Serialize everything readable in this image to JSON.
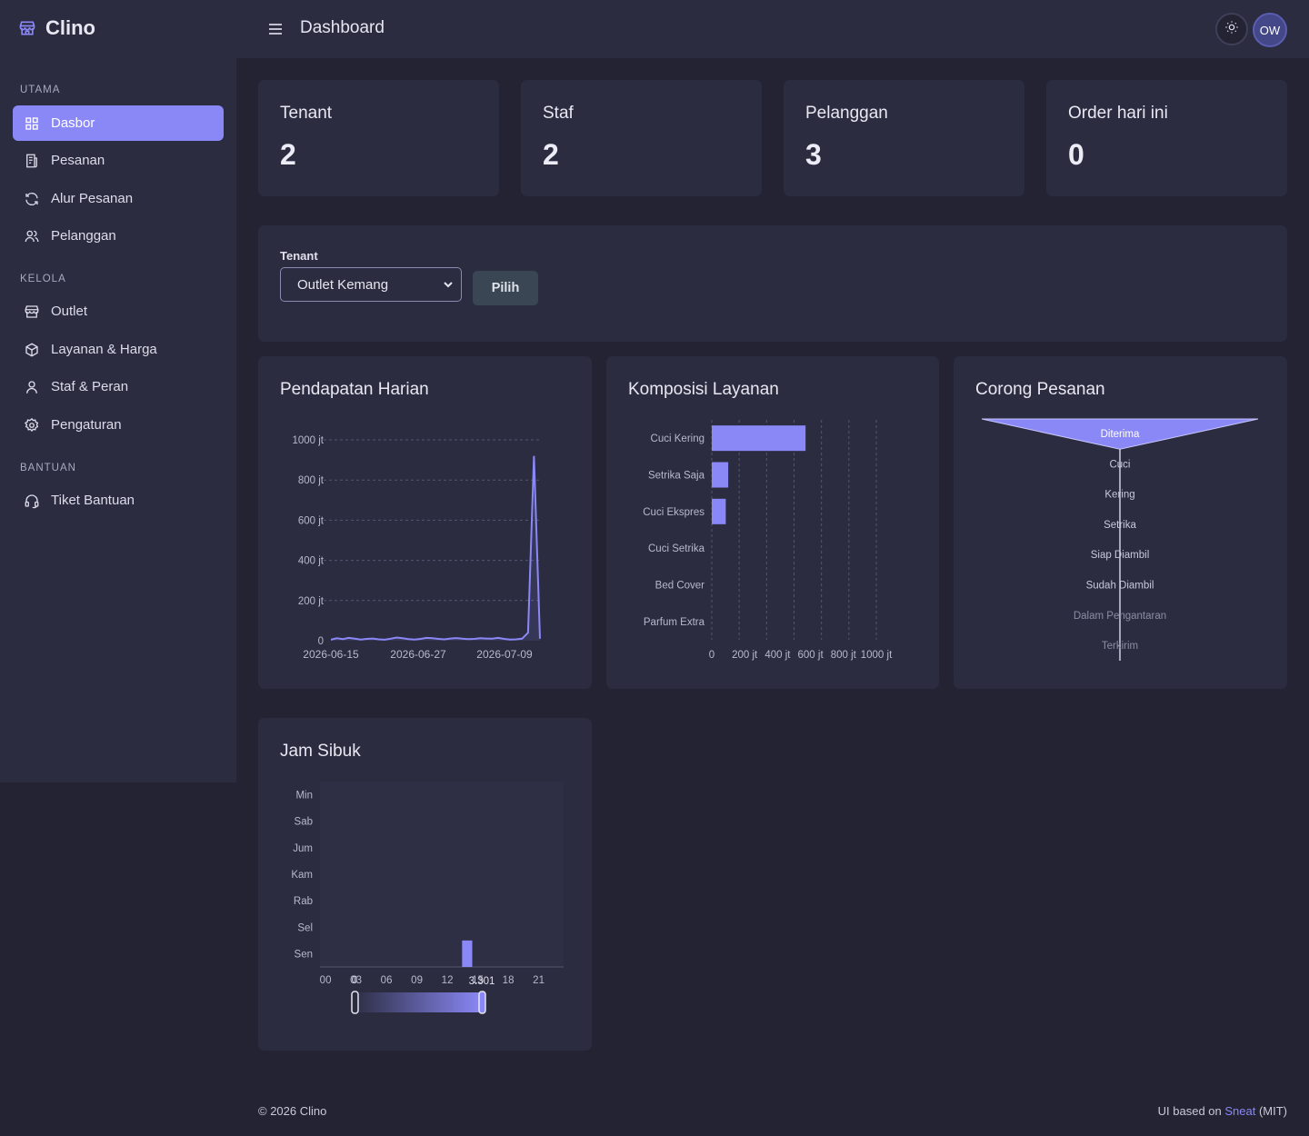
{
  "brand": {
    "name": "Clino"
  },
  "sidebar": {
    "sections": [
      {
        "label": "UTAMA",
        "items": [
          {
            "label": "Dasbor",
            "icon": "dashboard-icon",
            "active": true
          },
          {
            "label": "Pesanan",
            "icon": "receipt-icon"
          },
          {
            "label": "Alur Pesanan",
            "icon": "refresh-icon"
          },
          {
            "label": "Pelanggan",
            "icon": "users-icon"
          }
        ]
      },
      {
        "label": "KELOLA",
        "items": [
          {
            "label": "Outlet",
            "icon": "store-icon"
          },
          {
            "label": "Layanan & Harga",
            "icon": "package-icon"
          },
          {
            "label": "Staf & Peran",
            "icon": "user-icon"
          },
          {
            "label": "Pengaturan",
            "icon": "gear-icon"
          }
        ]
      },
      {
        "label": "BANTUAN",
        "items": [
          {
            "label": "Tiket Bantuan",
            "icon": "headset-icon"
          }
        ]
      }
    ]
  },
  "header": {
    "title": "Dashboard",
    "avatar_initials": "OW"
  },
  "stats": [
    {
      "label": "Tenant",
      "value": "2"
    },
    {
      "label": "Staf",
      "value": "2"
    },
    {
      "label": "Pelanggan",
      "value": "3"
    },
    {
      "label": "Order hari ini",
      "value": "0"
    }
  ],
  "filter": {
    "label": "Tenant",
    "selected": "Outlet Kemang",
    "button": "Pilih"
  },
  "chart_data": [
    {
      "type": "line",
      "title": "Pendapatan Harian",
      "y_ticks": [
        "0",
        "200 jt",
        "400 jt",
        "600 jt",
        "800 jt",
        "1000 jt"
      ],
      "x_ticks": [
        "2026-06-15",
        "2026-06-27",
        "2026-07-09"
      ],
      "ylim": [
        0,
        1000
      ],
      "series": [
        {
          "values": [
            5,
            12,
            8,
            14,
            10,
            6,
            9,
            11,
            7,
            5,
            10,
            16,
            12,
            8,
            6,
            9,
            14,
            12,
            9,
            7,
            11,
            13,
            10,
            8,
            9,
            12,
            11,
            10,
            14,
            9,
            6,
            7,
            10,
            40,
            920,
            10
          ]
        }
      ]
    },
    {
      "type": "bar",
      "orientation": "horizontal",
      "title": "Komposisi Layanan",
      "categories": [
        "Cuci Kering",
        "Setrika Saja",
        "Cuci Ekspres",
        "Cuci Setrika",
        "Bed Cover",
        "Parfum Extra"
      ],
      "values": [
        570,
        100,
        85,
        0,
        0,
        0
      ],
      "x_ticks": [
        "0",
        "200 jt",
        "400 jt",
        "600 jt",
        "800 jt",
        "1000 jt"
      ],
      "xlim": [
        0,
        1000
      ]
    },
    {
      "type": "funnel",
      "title": "Corong Pesanan",
      "categories": [
        "Diterima",
        "Cuci",
        "Kering",
        "Setrika",
        "Siap Diambil",
        "Sudah Diambil",
        "Dalam Pengantaran",
        "Terkirim"
      ],
      "values": [
        100,
        0,
        0,
        0,
        0,
        0,
        0,
        0
      ]
    },
    {
      "type": "heatmap",
      "title": "Jam Sibuk",
      "y_categories": [
        "Min",
        "Sab",
        "Jum",
        "Kam",
        "Rab",
        "Sel",
        "Sen"
      ],
      "x_ticks": [
        "00",
        "03",
        "06",
        "09",
        "12",
        "15",
        "18",
        "21"
      ],
      "cells": [
        {
          "day": "Sen",
          "hour": 14,
          "value": 1
        }
      ],
      "slider_labels": [
        "0",
        "3.301"
      ]
    }
  ],
  "footer": {
    "copyright": "© 2026 Clino",
    "credit_prefix": "UI based on ",
    "credit_link": "Sneat",
    "credit_suffix": " (MIT)"
  },
  "colors": {
    "accent": "#8a88f7",
    "card": "#2b2c40",
    "background": "#232333"
  }
}
